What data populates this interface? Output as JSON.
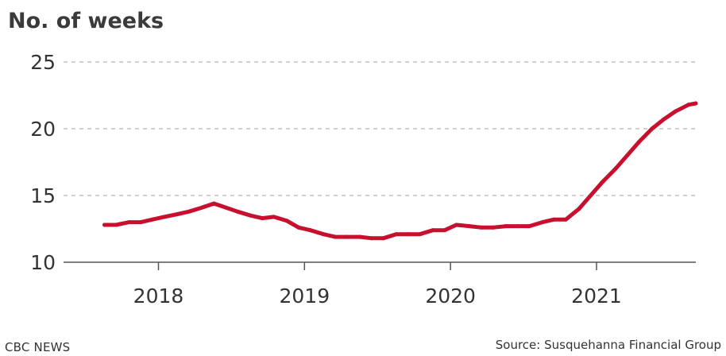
{
  "chart_data": {
    "type": "line",
    "ylabel": "No. of weeks",
    "xlabel": "",
    "ylim": [
      10,
      25
    ],
    "yticks": [
      10,
      15,
      20,
      25
    ],
    "xlim": [
      2017.35,
      2021.68
    ],
    "xticks": [
      2018,
      2019,
      2020,
      2021
    ],
    "xtick_labels": [
      "2018",
      "2019",
      "2020",
      "2021"
    ],
    "grid": "dashed horizontal",
    "series": [
      {
        "color": "#c8102e",
        "x": [
          2017.63,
          2017.71,
          2017.8,
          2017.88,
          2017.96,
          2018.04,
          2018.13,
          2018.21,
          2018.3,
          2018.38,
          2018.46,
          2018.54,
          2018.63,
          2018.71,
          2018.79,
          2018.88,
          2018.96,
          2019.04,
          2019.13,
          2019.21,
          2019.29,
          2019.38,
          2019.46,
          2019.54,
          2019.63,
          2019.71,
          2019.79,
          2019.88,
          2019.96,
          2020.04,
          2020.13,
          2020.21,
          2020.29,
          2020.38,
          2020.46,
          2020.54,
          2020.63,
          2020.71,
          2020.79,
          2020.88,
          2020.96,
          2021.04,
          2021.13,
          2021.21,
          2021.29,
          2021.38,
          2021.46,
          2021.54,
          2021.63,
          2021.68
        ],
        "values": [
          12.8,
          12.8,
          13.0,
          13.0,
          13.2,
          13.4,
          13.6,
          13.8,
          14.1,
          14.4,
          14.1,
          13.8,
          13.5,
          13.3,
          13.4,
          13.1,
          12.6,
          12.4,
          12.1,
          11.9,
          11.9,
          11.9,
          11.8,
          11.8,
          12.1,
          12.1,
          12.1,
          12.4,
          12.4,
          12.8,
          12.7,
          12.6,
          12.6,
          12.7,
          12.7,
          12.7,
          13.0,
          13.2,
          13.2,
          14.0,
          15.0,
          16.0,
          17.0,
          18.0,
          19.0,
          20.0,
          20.7,
          21.3,
          21.8,
          21.9
        ]
      }
    ]
  },
  "footer": {
    "credit": "CBC NEWS",
    "source": "Source: Susquehanna Financial Group"
  }
}
